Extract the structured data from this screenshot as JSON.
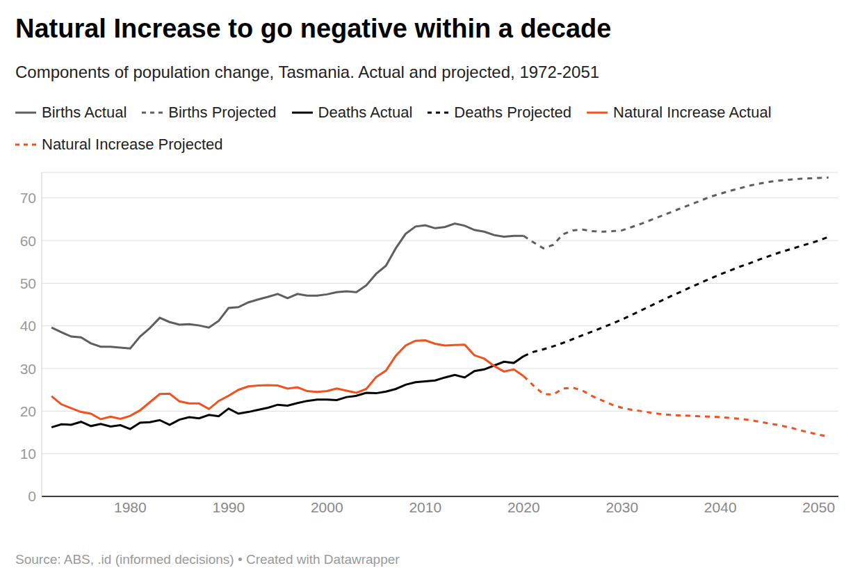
{
  "chart_data": {
    "type": "line",
    "title": "Natural Increase to go negative within a decade",
    "subtitle": "Components of population change, Tasmania. Actual and projected, 1972-2051",
    "source": "Source: ABS, .id (informed decisions) • Created with Datawrapper",
    "legend": "top",
    "grid": true,
    "xlim": [
      1971,
      2052
    ],
    "xticks": [
      1980,
      1990,
      2000,
      2010,
      2020,
      2030,
      2040,
      2050
    ],
    "ylim": [
      0,
      76
    ],
    "yticks": [
      0,
      10,
      20,
      30,
      40,
      50,
      60,
      70
    ],
    "x": [
      1972,
      1973,
      1974,
      1975,
      1976,
      1977,
      1978,
      1979,
      1980,
      1981,
      1982,
      1983,
      1984,
      1985,
      1986,
      1987,
      1988,
      1989,
      1990,
      1991,
      1992,
      1993,
      1994,
      1995,
      1996,
      1997,
      1998,
      1999,
      2000,
      2001,
      2002,
      2003,
      2004,
      2005,
      2006,
      2007,
      2008,
      2009,
      2010,
      2011,
      2012,
      2013,
      2014,
      2015,
      2016,
      2017,
      2018,
      2019,
      2020,
      2021,
      2022,
      2023,
      2024,
      2025,
      2026,
      2027,
      2028,
      2029,
      2030,
      2031,
      2032,
      2033,
      2034,
      2035,
      2036,
      2037,
      2038,
      2039,
      2040,
      2041,
      2042,
      2043,
      2044,
      2045,
      2046,
      2047,
      2048,
      2049,
      2050,
      2051
    ],
    "series": [
      {
        "name": "Births Actual",
        "color": "#5e5e5e",
        "line_style": "solid",
        "values": [
          39.6,
          38.5,
          37.5,
          37.3,
          35.9,
          35.1,
          35.1,
          34.9,
          34.7,
          37.5,
          39.5,
          41.9,
          40.9,
          40.3,
          40.4,
          40.1,
          39.6,
          41.2,
          44.2,
          44.4,
          45.5,
          46.2,
          46.8,
          47.5,
          46.5,
          47.5,
          47.1,
          47.1,
          47.4,
          47.9,
          48.1,
          47.9,
          49.5,
          52.2,
          54.1,
          58.2,
          61.6,
          63.3,
          63.6,
          62.9,
          63.2,
          64.0,
          63.5,
          62.5,
          62.1,
          61.3,
          60.9,
          61.1,
          61.1,
          null,
          null,
          null,
          null,
          null,
          null,
          null,
          null,
          null,
          null,
          null,
          null,
          null,
          null,
          null,
          null,
          null,
          null,
          null,
          null,
          null,
          null,
          null,
          null,
          null,
          null,
          null,
          null,
          null,
          null,
          null
        ]
      },
      {
        "name": "Births Projected",
        "color": "#5e5e5e",
        "line_style": "dashed",
        "values": [
          null,
          null,
          null,
          null,
          null,
          null,
          null,
          null,
          null,
          null,
          null,
          null,
          null,
          null,
          null,
          null,
          null,
          null,
          null,
          null,
          null,
          null,
          null,
          null,
          null,
          null,
          null,
          null,
          null,
          null,
          null,
          null,
          null,
          null,
          null,
          null,
          null,
          null,
          null,
          null,
          null,
          null,
          null,
          null,
          null,
          null,
          null,
          null,
          61.1,
          59.6,
          58.2,
          59.0,
          61.5,
          62.4,
          62.6,
          62.2,
          62.1,
          62.2,
          62.4,
          63.2,
          64.0,
          64.9,
          65.8,
          66.7,
          67.6,
          68.5,
          69.4,
          70.3,
          71.0,
          71.7,
          72.3,
          72.9,
          73.4,
          73.8,
          74.1,
          74.3,
          74.5,
          74.6,
          74.7,
          74.8
        ]
      },
      {
        "name": "Deaths Actual",
        "color": "#000000",
        "line_style": "solid",
        "values": [
          16.2,
          16.9,
          16.8,
          17.5,
          16.5,
          17.0,
          16.4,
          16.7,
          15.8,
          17.3,
          17.4,
          17.9,
          16.8,
          18.0,
          18.6,
          18.3,
          19.1,
          18.8,
          20.6,
          19.4,
          19.8,
          20.3,
          20.8,
          21.5,
          21.3,
          21.9,
          22.4,
          22.7,
          22.7,
          22.6,
          23.3,
          23.6,
          24.3,
          24.2,
          24.6,
          25.2,
          26.2,
          26.8,
          27.0,
          27.2,
          27.9,
          28.5,
          27.9,
          29.4,
          29.8,
          30.7,
          31.6,
          31.3,
          32.9,
          null,
          null,
          null,
          null,
          null,
          null,
          null,
          null,
          null,
          null,
          null,
          null,
          null,
          null,
          null,
          null,
          null,
          null,
          null,
          null,
          null,
          null,
          null,
          null,
          null,
          null,
          null,
          null,
          null,
          null,
          null
        ]
      },
      {
        "name": "Deaths Projected",
        "color": "#000000",
        "line_style": "dashed",
        "values": [
          null,
          null,
          null,
          null,
          null,
          null,
          null,
          null,
          null,
          null,
          null,
          null,
          null,
          null,
          null,
          null,
          null,
          null,
          null,
          null,
          null,
          null,
          null,
          null,
          null,
          null,
          null,
          null,
          null,
          null,
          null,
          null,
          null,
          null,
          null,
          null,
          null,
          null,
          null,
          null,
          null,
          null,
          null,
          null,
          null,
          null,
          null,
          null,
          32.9,
          33.9,
          34.5,
          35.2,
          36.0,
          36.9,
          37.8,
          38.7,
          39.6,
          40.5,
          41.5,
          42.6,
          43.7,
          44.8,
          45.9,
          47.0,
          48.0,
          49.1,
          50.1,
          51.1,
          52.1,
          53.0,
          53.9,
          54.7,
          55.6,
          56.4,
          57.2,
          57.9,
          58.6,
          59.3,
          60.0,
          60.9
        ]
      },
      {
        "name": "Natural Increase Actual",
        "color": "#f2501f",
        "line_style": "solid",
        "values": [
          23.5,
          21.6,
          20.7,
          19.8,
          19.4,
          18.1,
          18.7,
          18.2,
          18.9,
          20.2,
          22.1,
          24.0,
          24.1,
          22.3,
          21.8,
          21.8,
          20.5,
          22.4,
          23.6,
          25.0,
          25.8,
          26.0,
          26.1,
          26.0,
          25.3,
          25.6,
          24.7,
          24.5,
          24.7,
          25.3,
          24.8,
          24.3,
          25.2,
          28.0,
          29.5,
          33.0,
          35.4,
          36.5,
          36.6,
          35.8,
          35.4,
          35.5,
          35.6,
          33.1,
          32.3,
          30.6,
          29.3,
          29.8,
          28.2,
          null,
          null,
          null,
          null,
          null,
          null,
          null,
          null,
          null,
          null,
          null,
          null,
          null,
          null,
          null,
          null,
          null,
          null,
          null,
          null,
          null,
          null,
          null,
          null,
          null,
          null,
          null,
          null,
          null,
          null,
          null
        ]
      },
      {
        "name": "Natural Increase Projected",
        "color": "#f2501f",
        "line_style": "dashed",
        "values": [
          null,
          null,
          null,
          null,
          null,
          null,
          null,
          null,
          null,
          null,
          null,
          null,
          null,
          null,
          null,
          null,
          null,
          null,
          null,
          null,
          null,
          null,
          null,
          null,
          null,
          null,
          null,
          null,
          null,
          null,
          null,
          null,
          null,
          null,
          null,
          null,
          null,
          null,
          null,
          null,
          null,
          null,
          null,
          null,
          null,
          null,
          null,
          null,
          28.2,
          26.0,
          24.0,
          23.9,
          25.3,
          25.5,
          24.8,
          23.5,
          22.5,
          21.5,
          20.8,
          20.3,
          20.0,
          19.6,
          19.3,
          19.1,
          19.0,
          18.9,
          18.8,
          18.7,
          18.6,
          18.4,
          18.2,
          17.9,
          17.5,
          17.1,
          16.7,
          16.2,
          15.6,
          15.0,
          14.5,
          14.0
        ]
      }
    ]
  }
}
